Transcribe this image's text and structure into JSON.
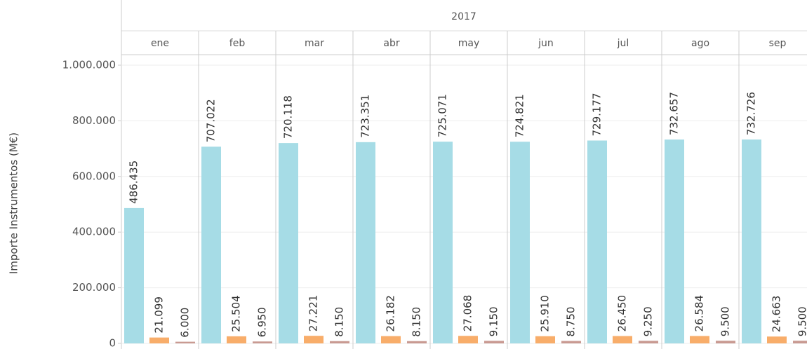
{
  "chart_data": {
    "type": "bar",
    "column_group": "2017",
    "ylabel": "Importe Instrumentos (M€)",
    "categories": [
      "ene",
      "feb",
      "mar",
      "abr",
      "may",
      "jun",
      "jul",
      "ago",
      "sep"
    ],
    "series": [
      {
        "color": "#a6dce6",
        "values": [
          486435,
          707022,
          720118,
          723351,
          725071,
          724821,
          729177,
          732657,
          732726
        ],
        "value_labels": [
          "486.435",
          "707.022",
          "720.118",
          "723.351",
          "725.071",
          "724.821",
          "729.177",
          "732.657",
          "732.726"
        ]
      },
      {
        "color": "#f8ad6a",
        "values": [
          21099,
          25504,
          27221,
          26182,
          27068,
          25910,
          26450,
          26584,
          24663
        ],
        "value_labels": [
          "21.099",
          "25.504",
          "27.221",
          "26.182",
          "27.068",
          "25.910",
          "26.450",
          "26.584",
          "24.663"
        ]
      },
      {
        "color": "#c99a92",
        "values": [
          6000,
          6950,
          8150,
          8150,
          9150,
          8750,
          9250,
          9500,
          9500
        ],
        "value_labels": [
          "6.000",
          "6.950",
          "8.150",
          "8.150",
          "9.150",
          "8.750",
          "9.250",
          "9.500",
          "9.500"
        ]
      }
    ],
    "ylim": [
      0,
      1000000
    ],
    "yticks": [
      0,
      {
        "value": 200000,
        "label": "200.000"
      },
      {
        "value": 400000,
        "label": "400.000"
      },
      {
        "value": 600000,
        "label": "600.000"
      },
      {
        "value": 800000,
        "label": "800.000"
      },
      {
        "value": 1000000,
        "label": "1.000.000"
      }
    ],
    "grid": true
  }
}
